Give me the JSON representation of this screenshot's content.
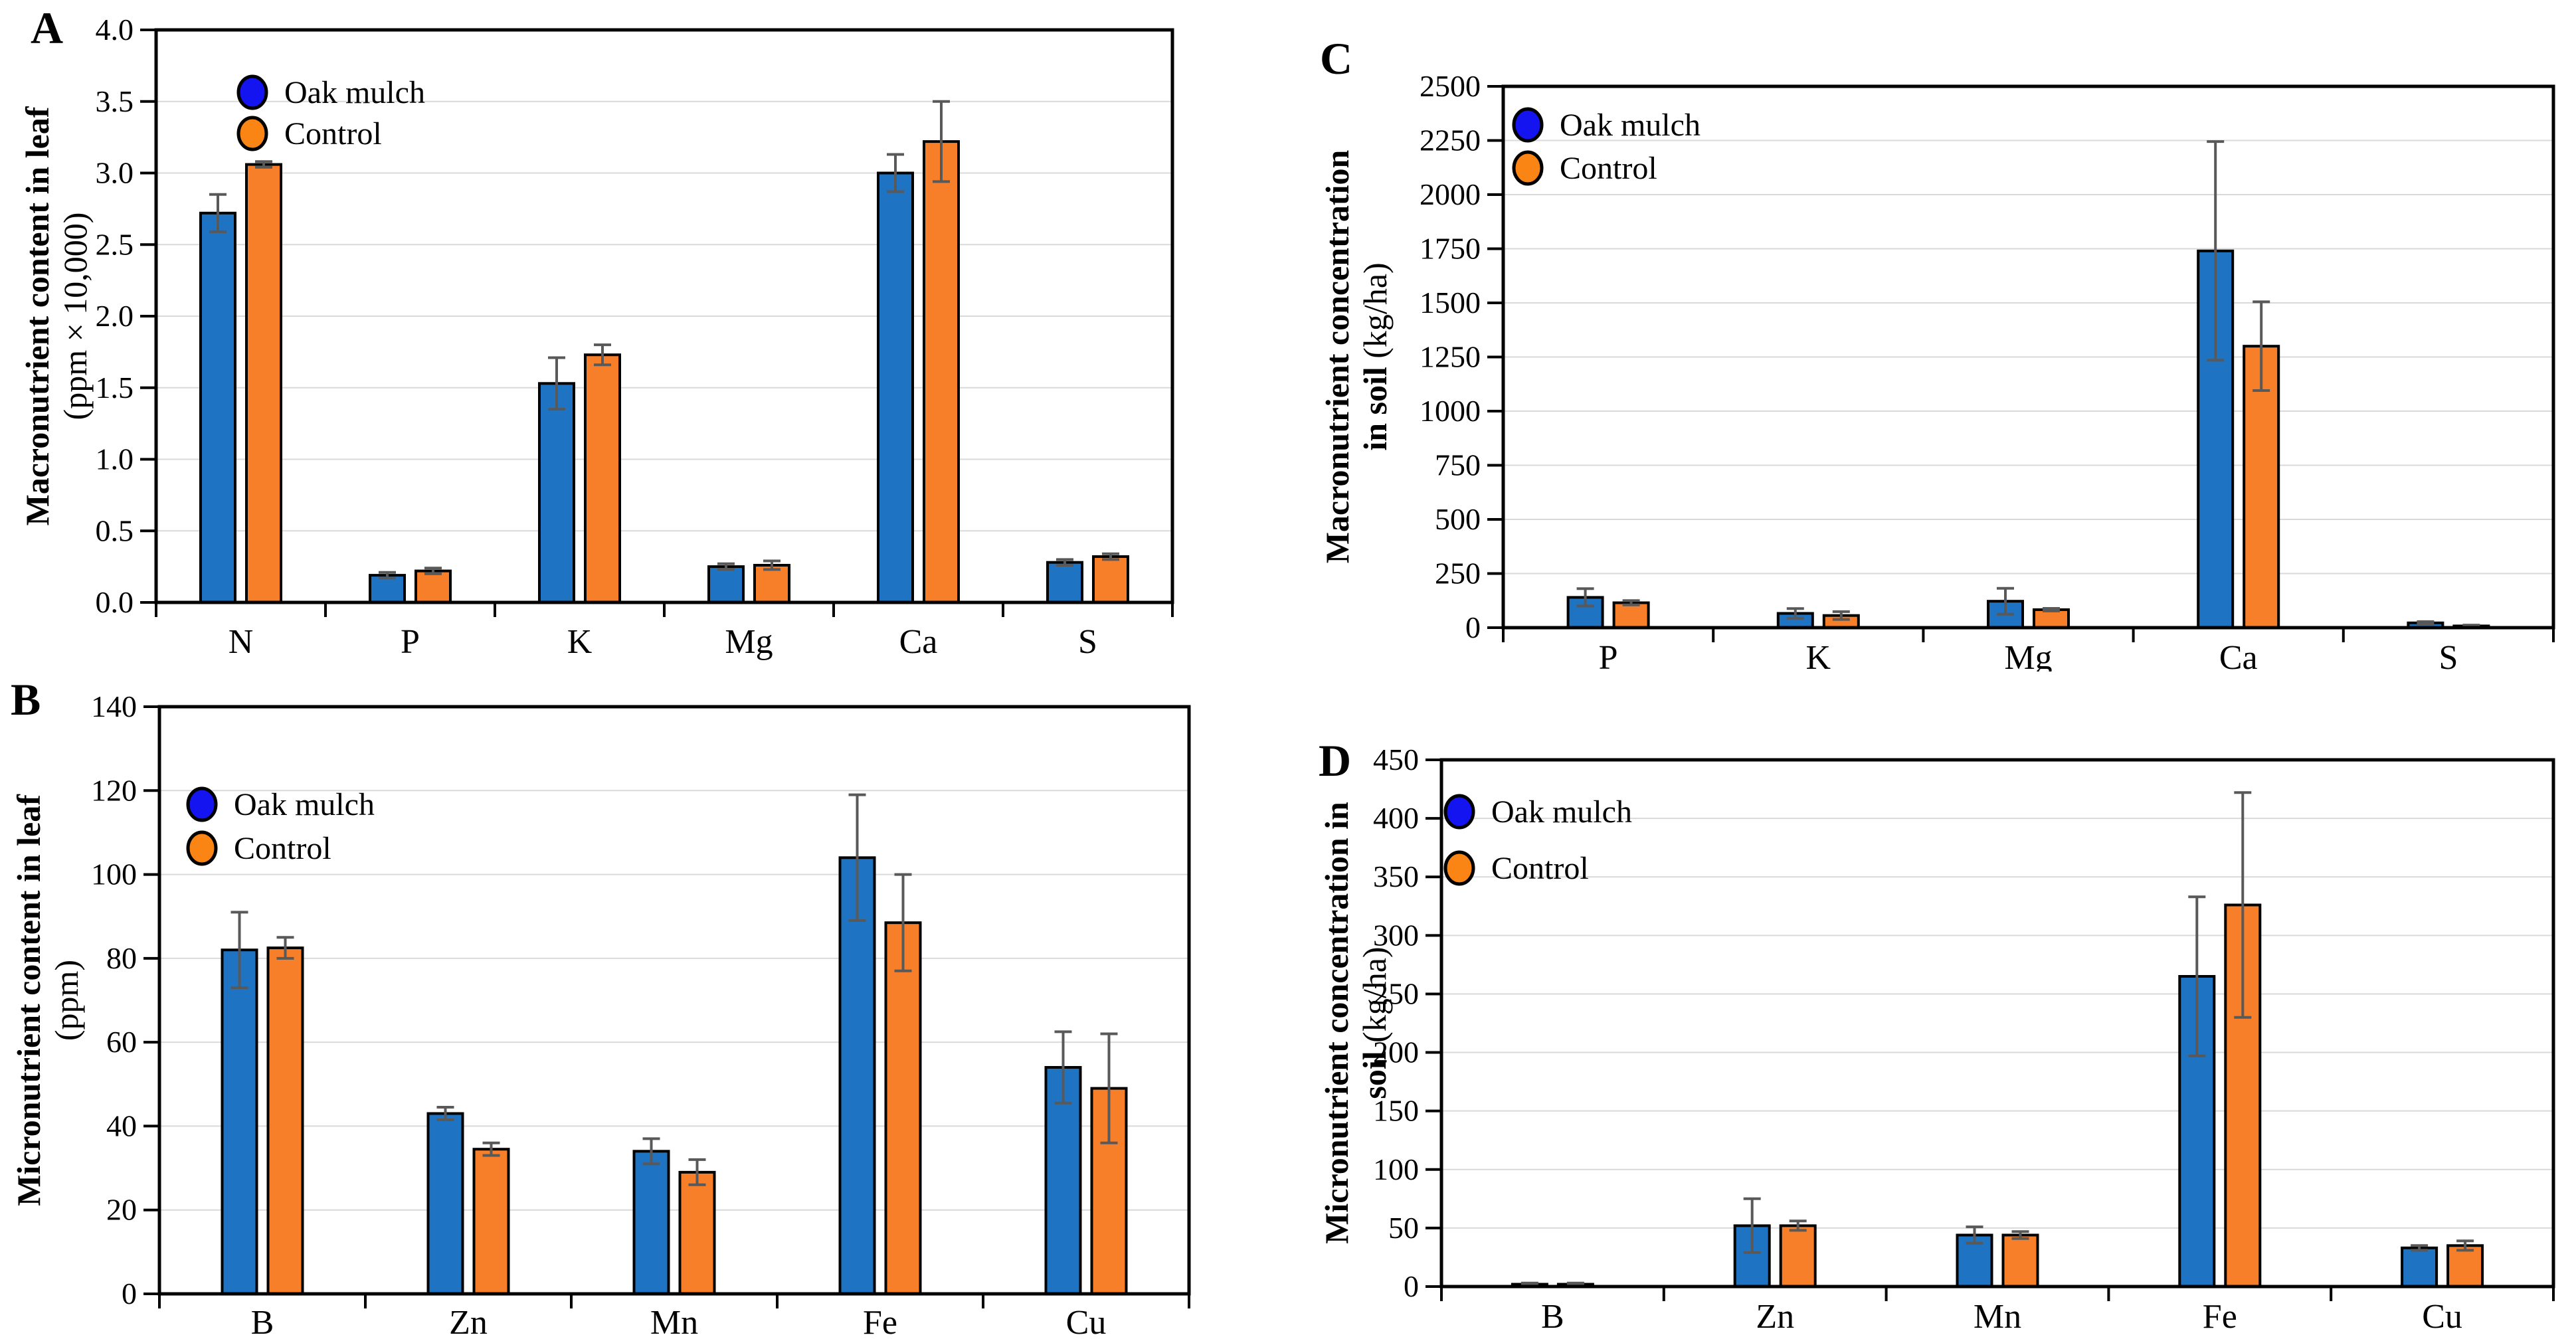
{
  "figure": {
    "legend_labels": [
      "Oak mulch",
      "Control"
    ]
  },
  "colors": {
    "bar_oak_mulch": "#1E73C3",
    "bar_control": "#F87F2A",
    "legend_marker_oak_mulch": "#1414F0",
    "legend_marker_control": "#FA8514",
    "bar_outline": "#000000",
    "error_bar": "#595959",
    "gridline": "#D9D9D9",
    "axis": "#000000"
  },
  "panels": [
    {
      "letter": "A",
      "ylabel_line1": "Macronutrient content in leaf",
      "ylabel_line2_bold": "",
      "ylabel_line2_unit": "(ppm × 10,000)"
    },
    {
      "letter": "B",
      "ylabel_line1": "Micronutrient content in leaf",
      "ylabel_line2_bold": "",
      "ylabel_line2_unit": "(ppm)"
    },
    {
      "letter": "C",
      "ylabel_line1": "Macronutrient concentration",
      "ylabel_line2_bold": "in soil",
      "ylabel_line2_unit": " (kg/ha)"
    },
    {
      "letter": "D",
      "ylabel_line1": "Micronutrient concentration in",
      "ylabel_line2_bold": "soil",
      "ylabel_line2_unit": " (kg/ha)"
    }
  ],
  "chart_data": [
    {
      "id": "A",
      "type": "bar",
      "title": "",
      "ylabel": "Macronutrient content in leaf (ppm × 10,000)",
      "xlabel": "",
      "categories": [
        "N",
        "P",
        "K",
        "Mg",
        "Ca",
        "S"
      ],
      "series": [
        {
          "name": "Oak mulch",
          "values": [
            2.72,
            0.19,
            1.53,
            0.25,
            3.0,
            0.28
          ],
          "errors": [
            0.13,
            0.02,
            0.18,
            0.02,
            0.13,
            0.02
          ]
        },
        {
          "name": "Control",
          "values": [
            3.06,
            0.22,
            1.73,
            0.26,
            3.22,
            0.32
          ],
          "errors": [
            0.02,
            0.02,
            0.07,
            0.03,
            0.28,
            0.02
          ]
        }
      ],
      "ylim": [
        0,
        4.0
      ],
      "ytick_step": 0.5,
      "ytick_decimals": 1,
      "grid": true,
      "legend_position": "top-left"
    },
    {
      "id": "B",
      "type": "bar",
      "title": "",
      "ylabel": "Micronutrient content in leaf (ppm)",
      "xlabel": "",
      "categories": [
        "B",
        "Zn",
        "Mn",
        "Fe",
        "Cu"
      ],
      "series": [
        {
          "name": "Oak mulch",
          "values": [
            82,
            43,
            34,
            104,
            54
          ],
          "errors": [
            9,
            1.5,
            3,
            15,
            8.5
          ]
        },
        {
          "name": "Control",
          "values": [
            82.5,
            34.5,
            29,
            88.5,
            49
          ],
          "errors": [
            2.5,
            1.5,
            3,
            11.5,
            13
          ]
        }
      ],
      "ylim": [
        0,
        140
      ],
      "ytick_step": 20,
      "ytick_decimals": 0,
      "grid": true,
      "legend_position": "top-left"
    },
    {
      "id": "C",
      "type": "bar",
      "title": "",
      "ylabel": "Macronutrient concentration in soil (kg/ha)",
      "xlabel": "",
      "categories": [
        "P",
        "K",
        "Mg",
        "Ca",
        "S"
      ],
      "series": [
        {
          "name": "Oak mulch",
          "values": [
            140,
            66,
            122,
            1740,
            22
          ],
          "errors": [
            40,
            22,
            60,
            505,
            6
          ]
        },
        {
          "name": "Control",
          "values": [
            115,
            56,
            83,
            1300,
            8
          ],
          "errors": [
            10,
            18,
            6,
            205,
            4
          ]
        }
      ],
      "ylim": [
        0,
        2500
      ],
      "ytick_step": 250,
      "ytick_decimals": 0,
      "grid": true,
      "legend_position": "top-left"
    },
    {
      "id": "D",
      "type": "bar",
      "title": "",
      "ylabel": "Micronutrient concentration in soil (kg/ha)",
      "xlabel": "",
      "categories": [
        "B",
        "Zn",
        "Mn",
        "Fe",
        "Cu"
      ],
      "series": [
        {
          "name": "Oak mulch",
          "values": [
            2,
            52,
            44,
            265,
            33
          ],
          "errors": [
            1,
            23,
            7,
            68,
            2
          ]
        },
        {
          "name": "Control",
          "values": [
            2,
            52,
            44,
            326,
            35
          ],
          "errors": [
            1,
            4,
            3,
            96,
            4
          ]
        }
      ],
      "ylim": [
        0,
        450
      ],
      "ytick_step": 50,
      "ytick_decimals": 0,
      "grid": true,
      "legend_position": "top-left"
    }
  ]
}
